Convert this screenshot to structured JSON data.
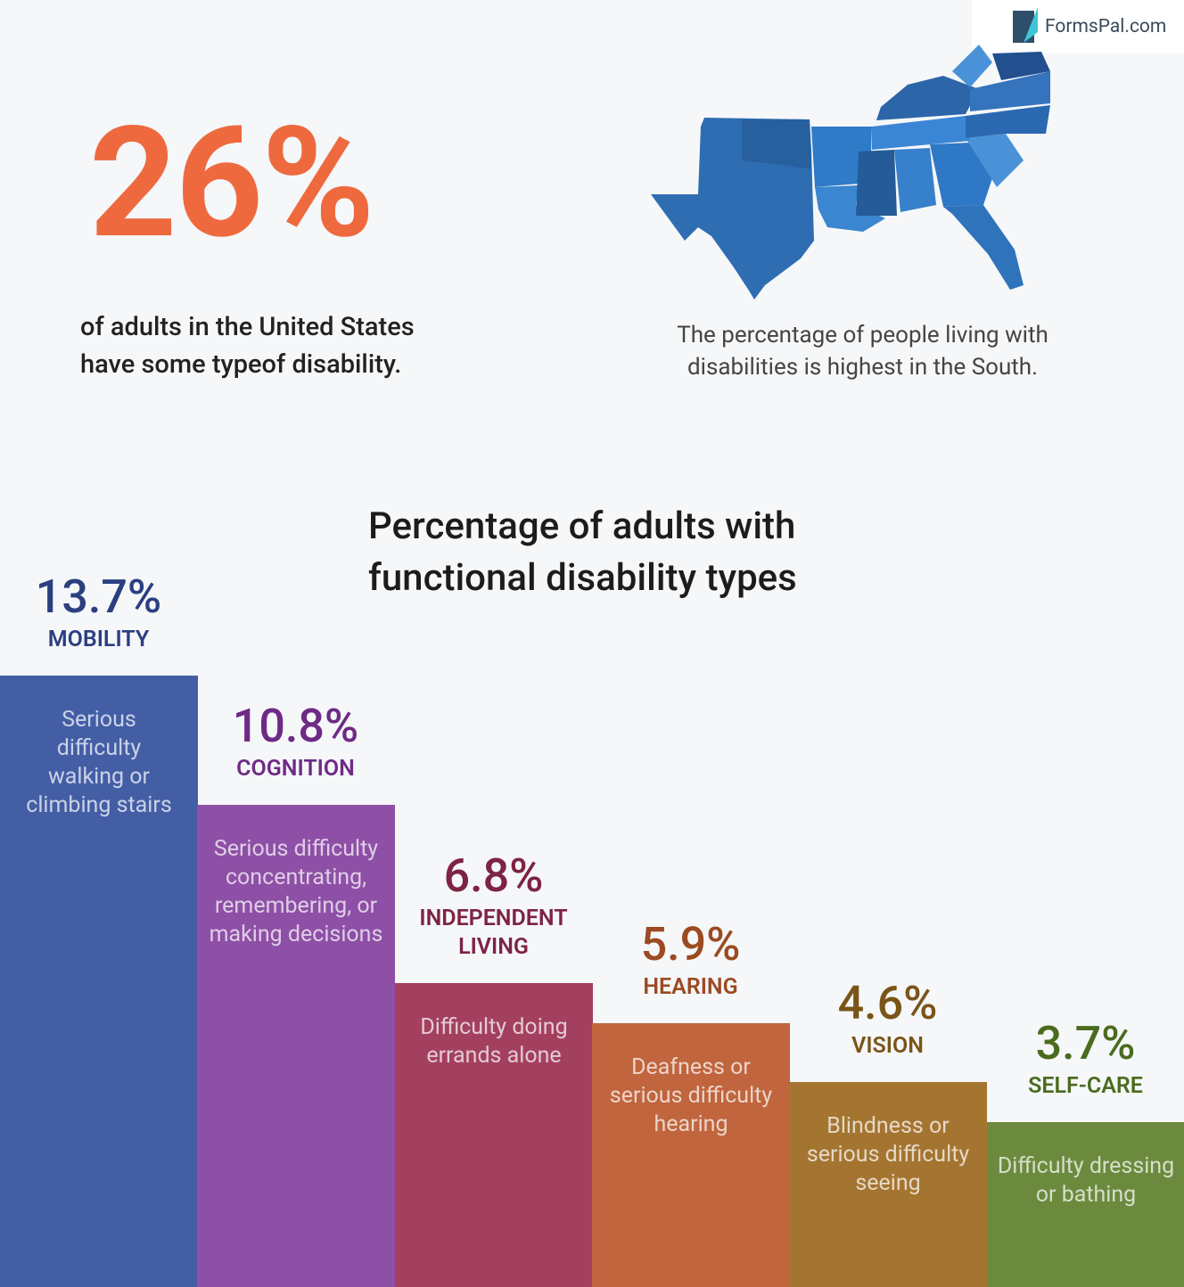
{
  "brand": "FormsPal.com",
  "headline": {
    "value": "26%",
    "text": "of adults in the United States have some typeof disability."
  },
  "map_caption": "The percentage of people living with disabilities is highest in the South.",
  "chart_data": {
    "type": "bar",
    "title": "Percentage of adults with functional disability types",
    "categories": [
      "MOBILITY",
      "COGNITION",
      "INDEPENDENT LIVING",
      "HEARING",
      "VISION",
      "SELF-CARE"
    ],
    "values": [
      13.7,
      10.8,
      6.8,
      5.9,
      4.6,
      3.7
    ],
    "value_labels": [
      "13.7%",
      "10.8%",
      "6.8%",
      "5.9%",
      "4.6%",
      "3.7%"
    ],
    "descriptions": [
      [
        "Serious",
        "difficulty",
        "walking or",
        "climbing stairs"
      ],
      [
        "Serious difficulty",
        "concentrating,",
        "remembering, or",
        "making decisions"
      ],
      [
        "Difficulty doing",
        "errands alone"
      ],
      [
        "Deafness or",
        "serious difficulty",
        "hearing"
      ],
      [
        "Blindness or",
        "serious difficulty",
        "seeing"
      ],
      [
        "Difficulty dressing",
        "or bathing"
      ]
    ],
    "colors": [
      "#435ea5",
      "#8e4fa6",
      "#a3405f",
      "#c0653d",
      "#a47530",
      "#6b8a3e"
    ],
    "label_colors": [
      "#2b3f80",
      "#6f2a85",
      "#7d2343",
      "#9c4a22",
      "#7a5418",
      "#4b6b1f"
    ]
  }
}
